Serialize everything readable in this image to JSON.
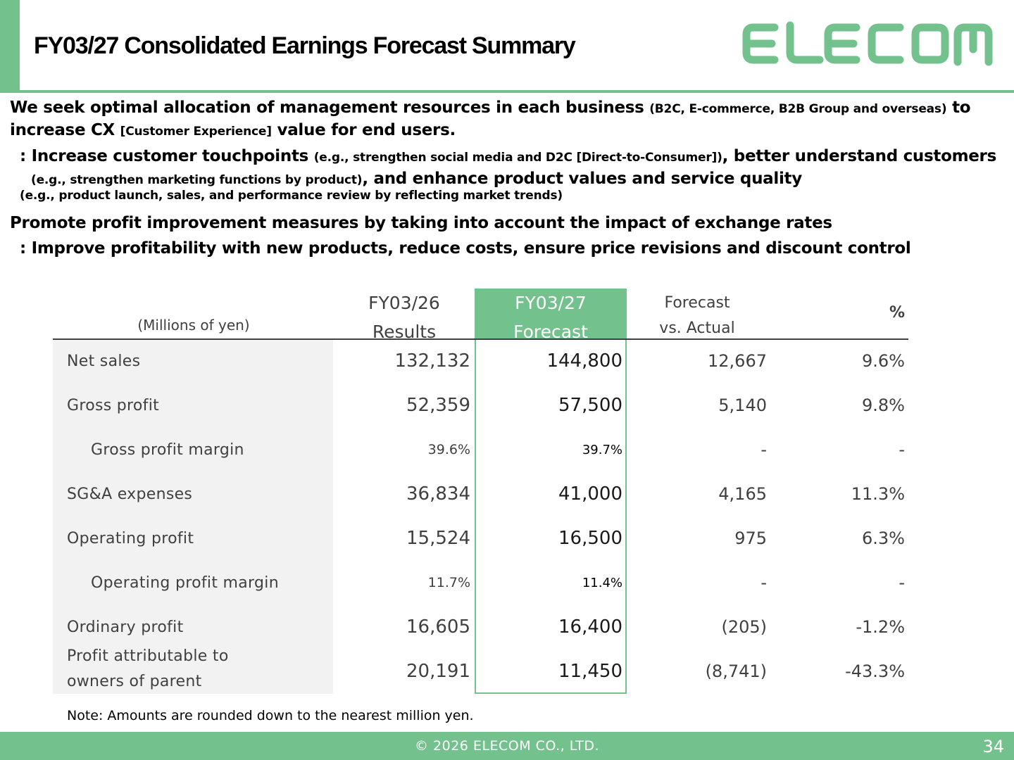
{
  "header": {
    "title": "FY03/27 Consolidated Earnings Forecast Summary",
    "logo_text": "ELECOM",
    "brand_color": "#73c18c"
  },
  "body": {
    "p1_a": "We seek optimal allocation of management resources in each business ",
    "p1_b": "(B2C, E-commerce, B2B Group and overseas)",
    "p1_c": " to increase CX ",
    "p1_d": "[Customer Experience]",
    "p1_e": " value for end users.",
    "p2_a": ": Increase customer touchpoints ",
    "p2_b": "(e.g., strengthen social media and D2C [Direct-to-Consumer])",
    "p2_c": ", better understand customers ",
    "p2_d": "(e.g., strengthen marketing functions by product)",
    "p2_e": ", and enhance product values and service quality",
    "p2_f": "(e.g., product launch, sales, and performance review by reflecting market trends)",
    "p3": "Promote profit improvement measures by taking into account the impact of exchange rates",
    "p4": ": Improve profitability with new products, reduce costs, ensure price revisions and discount control"
  },
  "table": {
    "units": "(Millions of yen)",
    "col_results_1": "FY03/26",
    "col_results_2": "Results",
    "col_forecast_1": "FY03/27",
    "col_forecast_2": "Forecast",
    "col_vs_1": "Forecast",
    "col_vs_2": "vs. Actual",
    "col_pct": "%",
    "rows": [
      {
        "label": "Net sales",
        "results": "132,132",
        "forecast": "144,800",
        "vs": "12,667",
        "pct": "9.6%"
      },
      {
        "label": "Gross profit",
        "results": "52,359",
        "forecast": "57,500",
        "vs": "5,140",
        "pct": "9.8%"
      },
      {
        "label": "Gross profit margin",
        "results": "39.6%",
        "forecast": "39.7%",
        "vs": "-",
        "pct": "-"
      },
      {
        "label": "SG&A expenses",
        "results": "36,834",
        "forecast": "41,000",
        "vs": "4,165",
        "pct": "11.3%"
      },
      {
        "label": "Operating profit",
        "results": "15,524",
        "forecast": "16,500",
        "vs": "975",
        "pct": "6.3%"
      },
      {
        "label": "Operating profit margin",
        "results": "11.7%",
        "forecast": "11.4%",
        "vs": "-",
        "pct": "-"
      },
      {
        "label": "Ordinary profit",
        "results": "16,605",
        "forecast": "16,400",
        "vs": "(205)",
        "pct": "-1.2%"
      },
      {
        "label_1": "Profit attributable to",
        "label_2": "owners of parent",
        "results": "20,191",
        "forecast": "11,450",
        "vs": "(8,741)",
        "pct": "-43.3%"
      }
    ]
  },
  "note": "Note: Amounts are rounded down to the nearest million yen.",
  "footer": {
    "copyright": "© 2026 ELECOM CO., LTD.",
    "page": "34"
  }
}
